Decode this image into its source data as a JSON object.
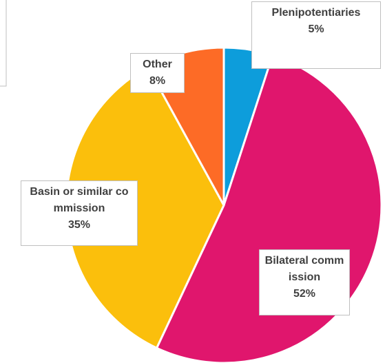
{
  "chart_data": {
    "type": "pie",
    "categories": [
      "Plenipotentiaries",
      "Bilateral commission",
      "Basin or similar commission",
      "Other"
    ],
    "values": [
      5,
      52,
      35,
      8
    ],
    "value_labels": [
      "5%",
      "52%",
      "35%",
      "8%"
    ],
    "colors": [
      "#0d9ddb",
      "#e0166d",
      "#fbbf0c",
      "#fd6b26"
    ]
  }
}
